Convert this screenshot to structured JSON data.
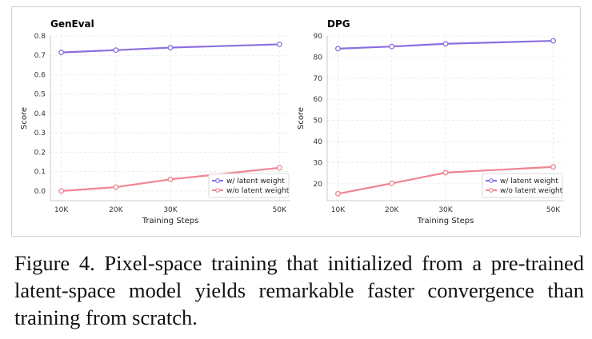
{
  "figure": {
    "caption": "Figure 4.  Pixel-space training that initialized from a pre-trained latent-space model yields remarkable faster convergence than training from scratch."
  },
  "colors": {
    "with_latent": "#8b6fe0",
    "without_latent": "#ee8590"
  },
  "chart_data": [
    {
      "type": "line",
      "title": "GenEval",
      "xlabel": "Training Steps",
      "ylabel": "Score",
      "x": [
        10000,
        20000,
        30000,
        50000
      ],
      "x_tick_labels": [
        "10K",
        "20K",
        "30K",
        "50K"
      ],
      "xlim": [
        8000,
        52000
      ],
      "ylim": [
        -0.05,
        0.8
      ],
      "y_ticks": [
        0.0,
        0.1,
        0.2,
        0.3,
        0.4,
        0.5,
        0.6,
        0.7,
        0.8
      ],
      "y_tick_labels": [
        "0.0",
        "0.1",
        "0.2",
        "0.3",
        "0.4",
        "0.5",
        "0.6",
        "0.7",
        "0.8"
      ],
      "grid": true,
      "legend": "lower-right",
      "series": [
        {
          "name": "w/ latent weight",
          "color": "#8b6fe0",
          "values": [
            0.715,
            0.727,
            0.74,
            0.757
          ]
        },
        {
          "name": "w/o latent weight",
          "color": "#ee8590",
          "values": [
            0.0,
            0.02,
            0.06,
            0.12
          ]
        }
      ]
    },
    {
      "type": "line",
      "title": "DPG",
      "xlabel": "Training Steps",
      "ylabel": "Score",
      "x": [
        10000,
        20000,
        30000,
        50000
      ],
      "x_tick_labels": [
        "10K",
        "20K",
        "30K",
        "50K"
      ],
      "xlim": [
        8000,
        52000
      ],
      "ylim": [
        12,
        90
      ],
      "y_ticks": [
        20,
        30,
        40,
        50,
        60,
        70,
        80,
        90
      ],
      "y_tick_labels": [
        "20",
        "30",
        "40",
        "50",
        "60",
        "70",
        "80",
        "90"
      ],
      "grid": true,
      "legend": "lower-right",
      "series": [
        {
          "name": "w/ latent weight",
          "color": "#8b6fe0",
          "values": [
            84.0,
            85.0,
            86.3,
            87.7
          ]
        },
        {
          "name": "w/o latent weight",
          "color": "#ee8590",
          "values": [
            15.3,
            20.2,
            25.3,
            28.0
          ]
        }
      ]
    }
  ]
}
